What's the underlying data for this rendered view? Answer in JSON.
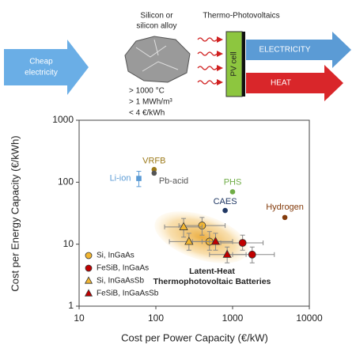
{
  "diagram": {
    "input_label": [
      "Cheap",
      "electricity"
    ],
    "material_label": [
      "Silicon or",
      "silicon alloy"
    ],
    "storage_specs": [
      "> 1000 °C",
      "> 1 MWh/m³",
      "< 4 €/kWh"
    ],
    "converter_title": "Thermo-Photovoltaics",
    "cell_label": "PV cell",
    "outputs": [
      "ELECTRICITY",
      "HEAT"
    ]
  },
  "chart_data": {
    "type": "scatter",
    "x_label": "Cost per Power Capacity (€/kW)",
    "y_label": "Cost per Energy Capacity (€/kWh)",
    "log_x": true,
    "log_y": true,
    "xlim": [
      10,
      10000
    ],
    "ylim": [
      1,
      1000
    ],
    "xticks": [
      10,
      100,
      1000,
      10000
    ],
    "yticks": [
      1,
      10,
      100,
      1000
    ],
    "region_label": [
      "Latent-Heat",
      "Thermophotovoltaic Batteries"
    ],
    "legend": "lower left",
    "points": [
      {
        "label": "Li-ion",
        "color": "#5b9bd5",
        "marker": "square",
        "x": 60,
        "y": 115,
        "y_range": [
          85,
          150
        ]
      },
      {
        "label": "VRFB",
        "color": "#9c7a1a",
        "marker": "circle",
        "x": 95,
        "y": 160
      },
      {
        "label": "Pb-acid",
        "color": "#555555",
        "marker": "circle",
        "x": 95,
        "y": 140
      },
      {
        "label": "PHS",
        "color": "#70ad47",
        "marker": "circle",
        "x": 1000,
        "y": 70
      },
      {
        "label": "CAES",
        "color": "#203864",
        "marker": "circle",
        "x": 800,
        "y": 35
      },
      {
        "label": "Hydrogen",
        "color": "#843c0c",
        "marker": "circle",
        "x": 4800,
        "y": 27
      }
    ],
    "series": [
      {
        "name": "Si, InGaAs",
        "color": "#f2b632",
        "marker": "circle",
        "x": [
          400,
          500
        ],
        "y": [
          20,
          11
        ],
        "x_range": [
          [
            200,
            800
          ],
          [
            300,
            1000
          ]
        ],
        "y_range": [
          [
            14,
            27
          ],
          [
            8,
            16
          ]
        ]
      },
      {
        "name": "FeSiB, InGaAs",
        "color": "#c00000",
        "marker": "circle",
        "x": [
          1350,
          1800
        ],
        "y": [
          10.5,
          6.8
        ],
        "x_range": [
          [
            700,
            2500
          ],
          [
            1000,
            3500
          ]
        ],
        "y_range": [
          [
            8,
            14
          ],
          [
            5,
            9
          ]
        ]
      },
      {
        "name": "Si, InGaAsSb",
        "color": "#f2b632",
        "marker": "triangle",
        "x": [
          230,
          270
        ],
        "y": [
          19,
          11
        ],
        "x_range": [
          [
            130,
            400
          ],
          [
            150,
            500
          ]
        ],
        "y_range": [
          [
            13,
            26
          ],
          [
            8,
            15
          ]
        ]
      },
      {
        "name": "FeSiB, InGaAsSb",
        "color": "#c00000",
        "marker": "triangle",
        "x": [
          600,
          850
        ],
        "y": [
          11,
          6.8
        ],
        "x_range": [
          [
            400,
            1000
          ],
          [
            500,
            1500
          ]
        ],
        "y_range": [
          [
            8,
            15
          ],
          [
            5,
            9
          ]
        ]
      }
    ]
  }
}
